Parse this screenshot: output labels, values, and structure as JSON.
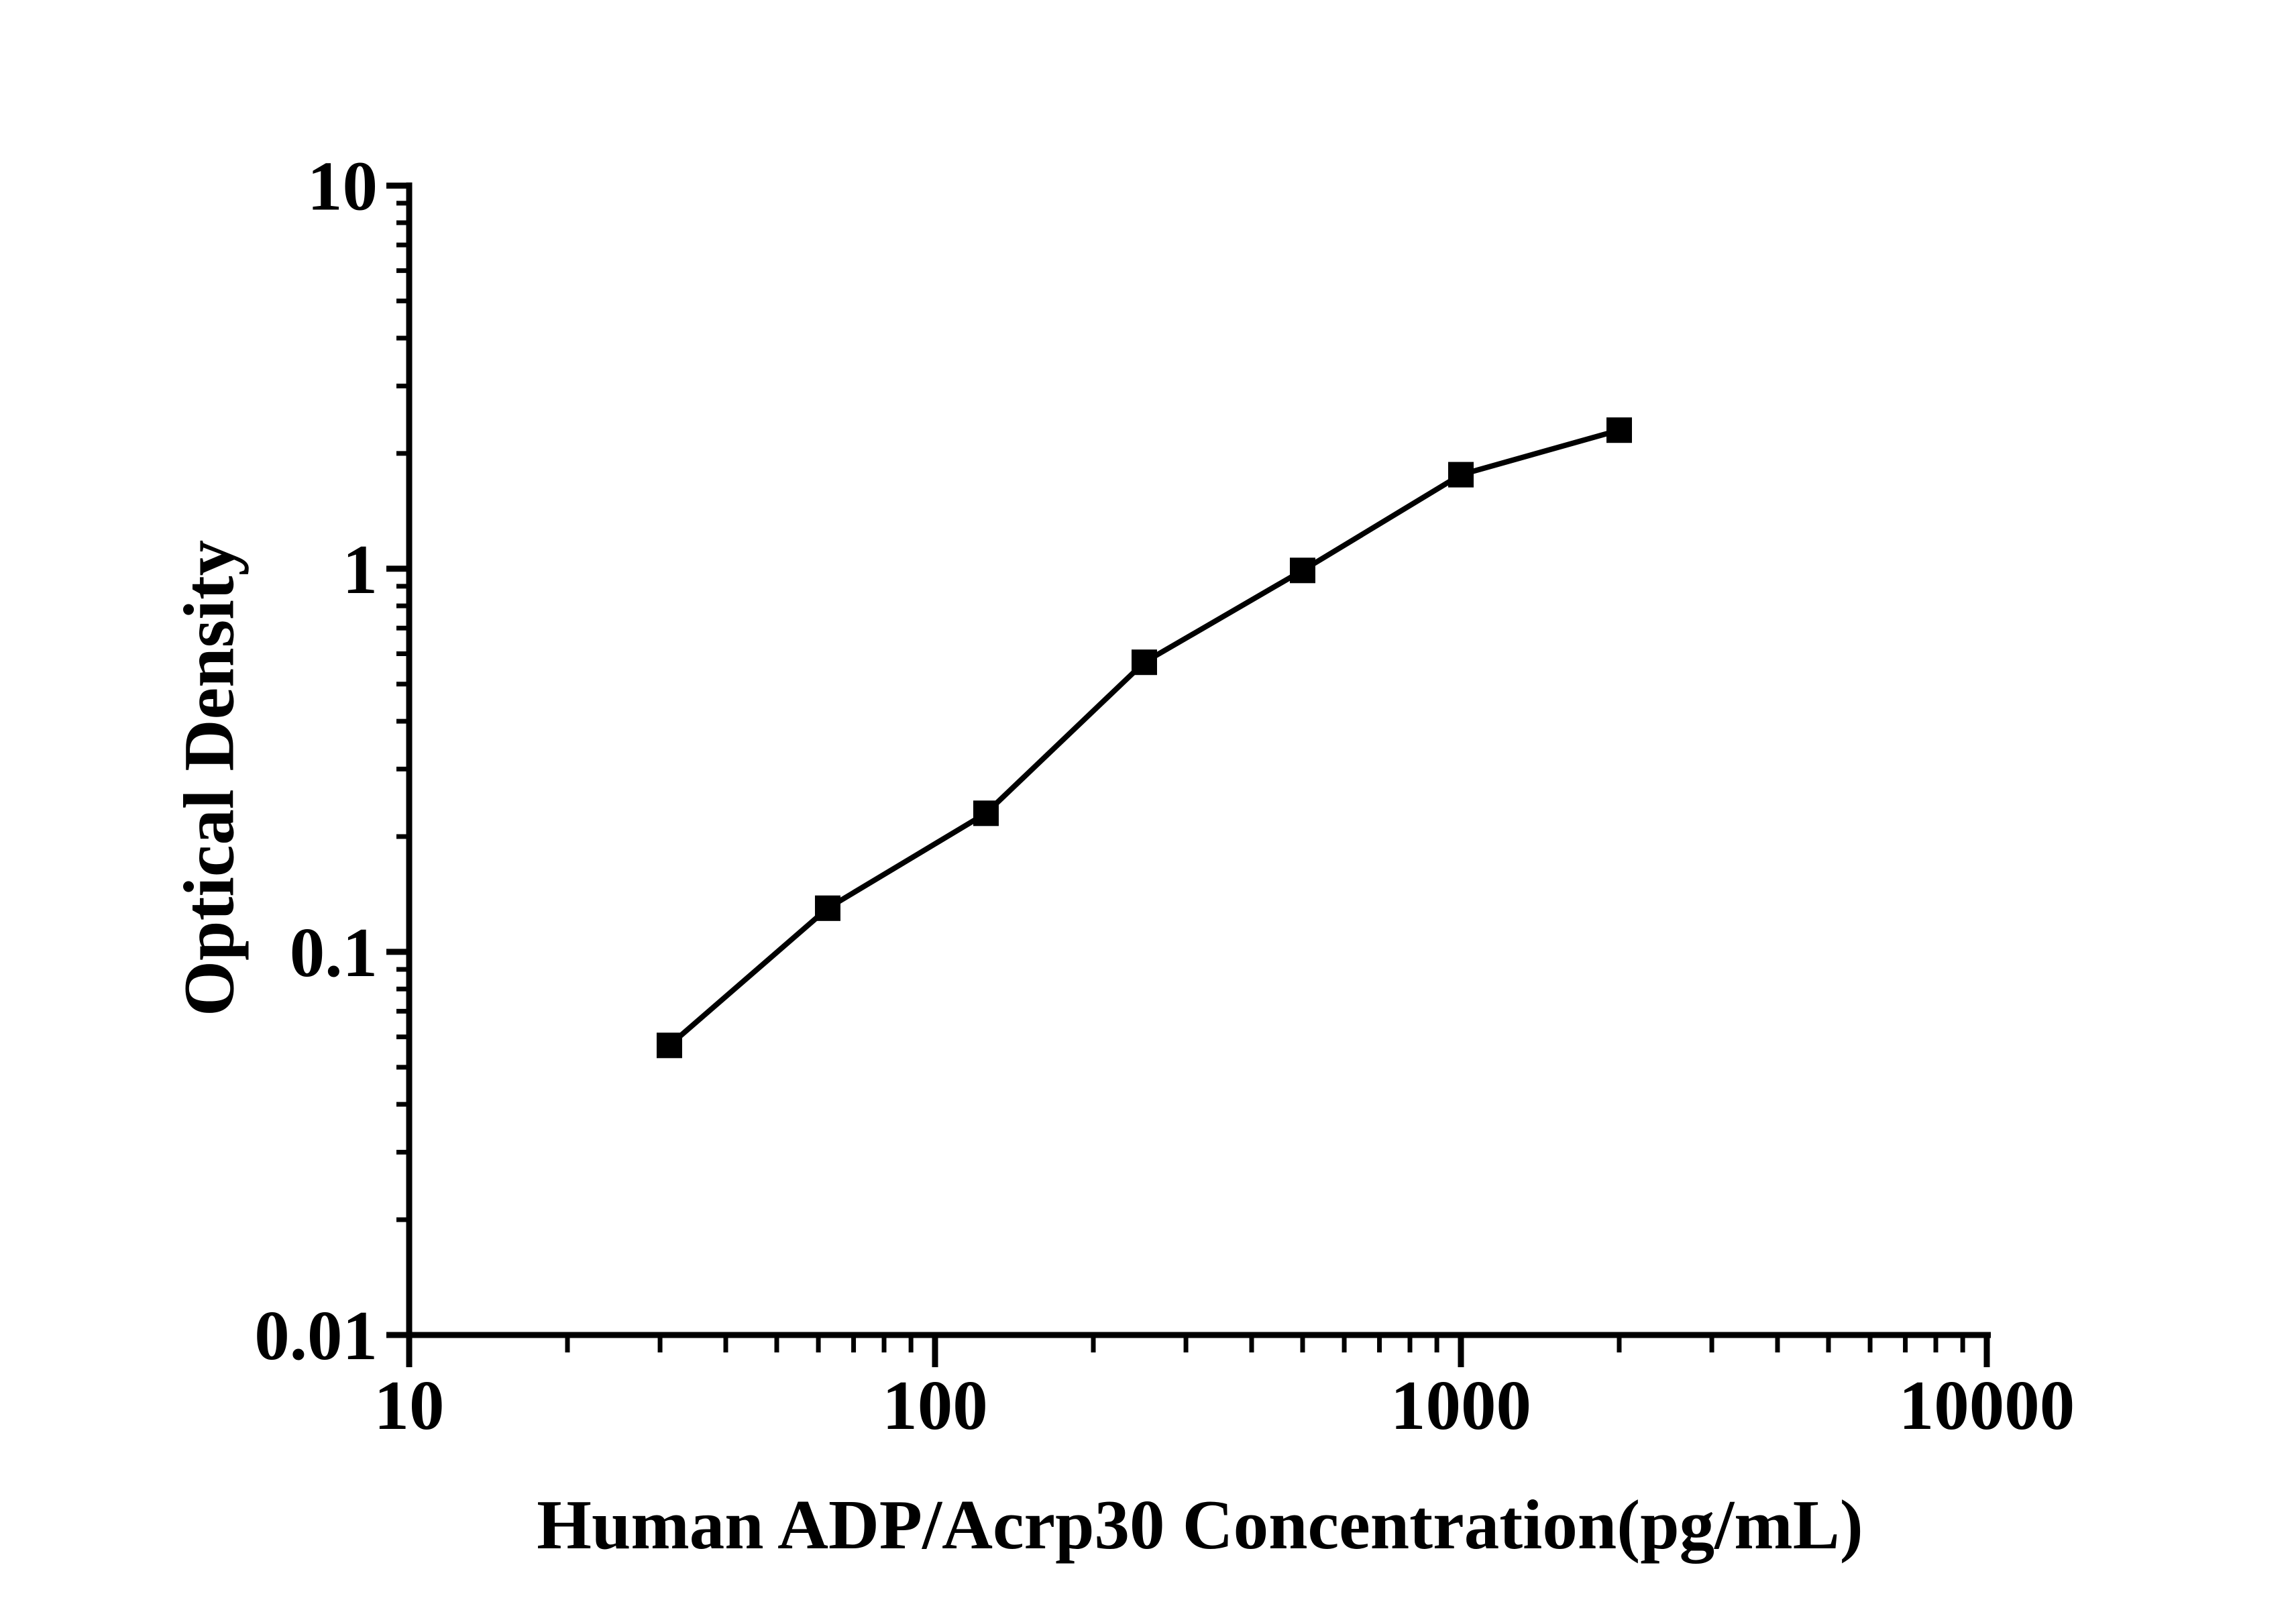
{
  "figure": {
    "background_color": "#ffffff",
    "ink_color": "#000000"
  },
  "chart_data": {
    "type": "line",
    "subtype": "scatter-line-standard-curve",
    "title": "",
    "xlabel": "Human ADP/Acrp30 Concentration(pg/mL)",
    "ylabel": "Optical Density",
    "x_scale": "log",
    "y_scale": "log",
    "xlim": [
      10,
      10000
    ],
    "ylim": [
      0.01,
      10
    ],
    "x_ticks_major": [
      10,
      100,
      1000,
      10000
    ],
    "x_tick_labels": [
      "10",
      "100",
      "1000",
      "10000"
    ],
    "y_ticks_major": [
      0.01,
      0.1,
      1,
      10
    ],
    "y_tick_labels": [
      "0.01",
      "0.1",
      "1",
      "10"
    ],
    "minor_ticks": "log multiples 2-9 per decade, both axes",
    "grid": false,
    "legend": null,
    "marker": "filled-square",
    "marker_color": "#000000",
    "line_color": "#000000",
    "points": [
      {
        "x": 31.25,
        "y": 0.057
      },
      {
        "x": 62.5,
        "y": 0.13
      },
      {
        "x": 125,
        "y": 0.23
      },
      {
        "x": 250,
        "y": 0.57
      },
      {
        "x": 500,
        "y": 0.99
      },
      {
        "x": 1000,
        "y": 1.76
      },
      {
        "x": 2000,
        "y": 2.3
      }
    ]
  }
}
